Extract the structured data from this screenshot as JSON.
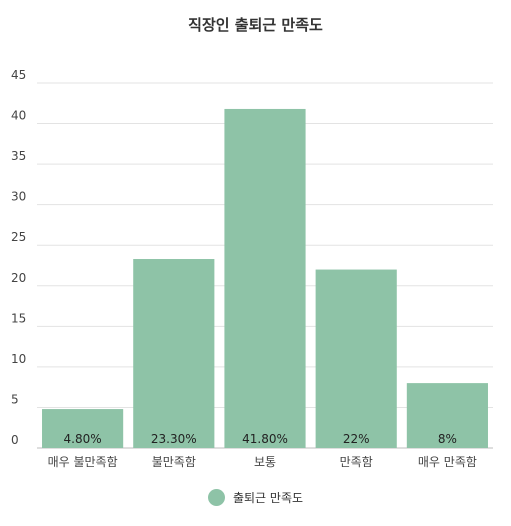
{
  "chart_data": {
    "type": "bar",
    "title": "직장인 출퇴근 만족도",
    "categories": [
      "매우 불만족함",
      "불만족함",
      "보통",
      "만족함",
      "매우 만족함"
    ],
    "series": [
      {
        "name": "출퇴근 만족도",
        "values": [
          4.8,
          23.3,
          41.8,
          22,
          8
        ],
        "data_labels": [
          "4.80%",
          "23.30%",
          "41.80%",
          "22%",
          "8%"
        ]
      }
    ],
    "ylim": [
      0,
      45
    ],
    "yticks": [
      "0",
      "5",
      "10",
      "15",
      "20",
      "25",
      "30",
      "35",
      "40",
      "45"
    ],
    "grid": true,
    "legend_position": "bottom",
    "bar_color": "#8ec3a7"
  }
}
